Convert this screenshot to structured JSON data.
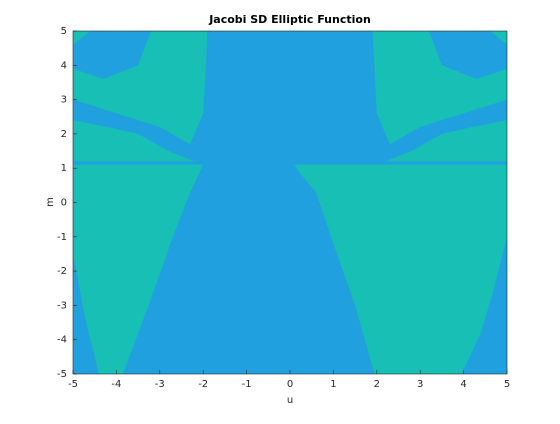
{
  "chart_data": {
    "type": "contourf",
    "title": "Jacobi SD Elliptic Function",
    "xlabel": "u",
    "ylabel": "m",
    "xlim": [
      -5,
      5
    ],
    "ylim": [
      -5,
      5
    ],
    "xticks": [
      -5,
      -4,
      -3,
      -2,
      -1,
      0,
      1,
      2,
      3,
      4,
      5
    ],
    "yticks": [
      -5,
      -4,
      -3,
      -2,
      -1,
      0,
      1,
      2,
      3,
      4,
      5
    ],
    "colors": [
      "#21a0df",
      "#17bfb4"
    ]
  }
}
